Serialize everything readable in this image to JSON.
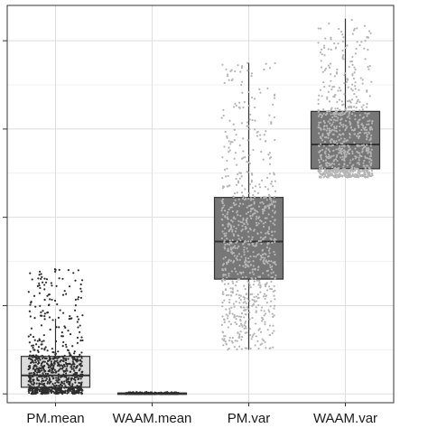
{
  "chart_data": {
    "type": "boxplot",
    "title": "",
    "xlabel": "",
    "ylabel": "",
    "y_tick_labels_visible": false,
    "y_tick_count": 5,
    "y_minor_gridlines": true,
    "grid": true,
    "background": "#ffffff",
    "legend": "none",
    "ylim": [
      -0.2,
      8.8
    ],
    "categories": [
      "PM.mean",
      "WAAM.mean",
      "PM.var",
      "WAAM.var"
    ],
    "boxes": [
      {
        "category": "PM.mean",
        "q1": 0.15,
        "median": 0.42,
        "q3": 0.85,
        "whisker_low": 0.0,
        "whisker_high": 1.7,
        "fill": "#dcdcdc",
        "jitter_color": "#2e2e2e",
        "points_min": 0.0,
        "points_max": 2.85,
        "n_points": 850
      },
      {
        "category": "WAAM.mean",
        "q1": 0.0,
        "median": 0.01,
        "q3": 0.02,
        "whisker_low": 0.0,
        "whisker_high": 0.04,
        "fill": "#dcdcdc",
        "jitter_color": "#2e2e2e",
        "points_min": 0.0,
        "points_max": 0.04,
        "n_points": 300
      },
      {
        "category": "PM.var",
        "q1": 2.6,
        "median": 3.45,
        "q3": 4.45,
        "whisker_low": 1.0,
        "whisker_high": 7.5,
        "fill": "#777777",
        "jitter_color": "#b5b5b5",
        "points_min": 1.0,
        "points_max": 7.5,
        "n_points": 850
      },
      {
        "category": "WAAM.var",
        "q1": 5.1,
        "median": 5.65,
        "q3": 6.4,
        "whisker_low": 5.0,
        "whisker_high": 8.5,
        "fill": "#777777",
        "jitter_color": "#b5b5b5",
        "points_min": 4.9,
        "points_max": 8.5,
        "n_points": 850
      }
    ]
  }
}
